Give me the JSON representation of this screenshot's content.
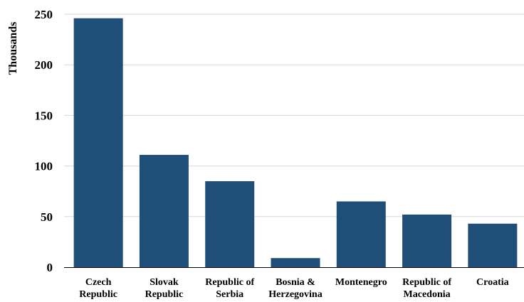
{
  "chart_data": {
    "type": "bar",
    "title": "",
    "xlabel": "",
    "ylabel": "Thousands",
    "categories": [
      [
        "Czech",
        "Republic"
      ],
      [
        "Slovak",
        "Republic"
      ],
      [
        "Republic of",
        "Serbia"
      ],
      [
        "Bosnia &",
        "Herzegovina"
      ],
      [
        "Montenegro"
      ],
      [
        "Republic of",
        "Macedonia"
      ],
      [
        "Croatia"
      ]
    ],
    "values": [
      246,
      111,
      85,
      9,
      65,
      52,
      43
    ],
    "ylim": [
      0,
      250
    ],
    "yticks": [
      0,
      50,
      100,
      150,
      200,
      250
    ],
    "grid": true,
    "bar_color": "#1f4e79",
    "grid_color": "#d9d9d9"
  }
}
